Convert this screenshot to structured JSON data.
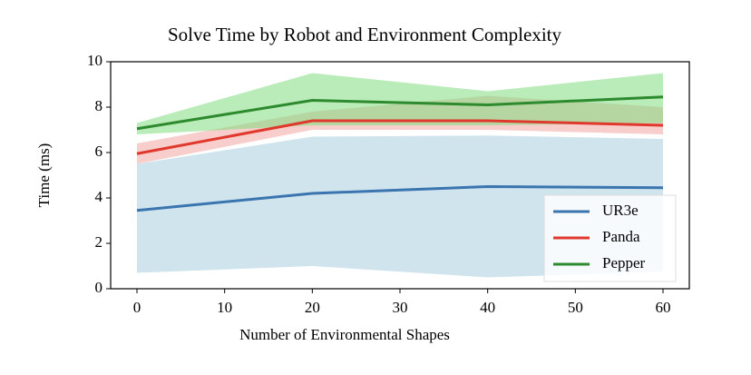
{
  "chart_data": {
    "type": "line",
    "title": "Solve Time by Robot and Environment Complexity",
    "x_label": "Number of Environmental Shapes",
    "y_label": "Time (ms)",
    "x": [
      0,
      20,
      40,
      60
    ],
    "xlim": [
      -3,
      63
    ],
    "xticks": [
      0,
      10,
      20,
      30,
      40,
      50,
      60
    ],
    "ylim": [
      0,
      10
    ],
    "yticks": [
      0,
      2,
      4,
      6,
      8,
      10
    ],
    "legend": "lower right",
    "series": [
      {
        "name": "UR3e",
        "color": "#3b75af",
        "band_color": "#a9cde0",
        "values": [
          3.45,
          4.2,
          4.5,
          4.45
        ],
        "lower": [
          0.7,
          1.0,
          0.5,
          0.75
        ],
        "upper": [
          5.5,
          6.7,
          6.75,
          6.6
        ]
      },
      {
        "name": "Panda",
        "color": "#e0382c",
        "band_color": "#f0a6a0",
        "values": [
          5.95,
          7.4,
          7.4,
          7.2
        ],
        "lower": [
          5.5,
          7.0,
          7.0,
          6.8
        ],
        "upper": [
          6.4,
          7.8,
          8.5,
          8.0
        ]
      },
      {
        "name": "Pepper",
        "color": "#2e8a2e",
        "band_color": "#7fdc7f",
        "values": [
          7.05,
          8.3,
          8.1,
          8.45
        ],
        "lower": [
          6.8,
          7.2,
          7.2,
          7.3
        ],
        "upper": [
          7.3,
          9.5,
          8.7,
          9.5
        ]
      }
    ]
  }
}
